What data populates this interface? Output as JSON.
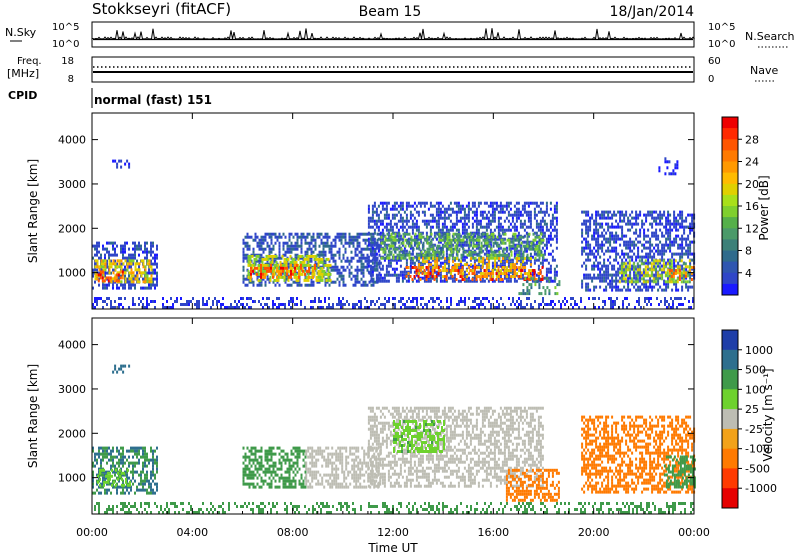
{
  "header": {
    "station": "Stokkseyri (fitACF)",
    "beam": "Beam 15",
    "date": "18/Jan/2014"
  },
  "strips": {
    "nsky_label": "N.Sky",
    "nsky_ticks": [
      "10^5",
      "10^0"
    ],
    "nsearch_label": "N.Search",
    "nsearch_ticks": [
      "10^5",
      "10^0"
    ],
    "freq_label_1": "Freq.",
    "freq_label_2": "[MHz]",
    "freq_ticks": [
      "18",
      "8"
    ],
    "nave_label": "Nave",
    "nave_ticks": [
      "60",
      "0"
    ],
    "cpid_label": "CPID",
    "cpid_value": "normal (fast) 151"
  },
  "chart_data": [
    {
      "type": "heatmap",
      "name": "power",
      "xlabel": "",
      "ylabel": "Slant Range [km]",
      "x_ticks": [
        "00:00",
        "04:00",
        "08:00",
        "12:00",
        "16:00",
        "20:00",
        "00:00"
      ],
      "xlim_hours": [
        0,
        24
      ],
      "y_ticks": [
        "1000",
        "2000",
        "3000",
        "4000"
      ],
      "ylim_km": [
        180,
        4600
      ],
      "colorbar": {
        "label": "Power [dB]",
        "ticks": [
          "28",
          "24",
          "20",
          "16",
          "12",
          "8",
          "4"
        ],
        "range": [
          0,
          30
        ]
      },
      "regions": [
        {
          "t": [
            0.0,
            2.6
          ],
          "r": [
            650,
            1700
          ],
          "level": 6
        },
        {
          "t": [
            0.1,
            2.4
          ],
          "r": [
            800,
            1300
          ],
          "level": 20
        },
        {
          "t": [
            0.15,
            1.2
          ],
          "r": [
            800,
            1050
          ],
          "level": 26
        },
        {
          "t": [
            6.0,
            11.5
          ],
          "r": [
            700,
            1900
          ],
          "level": 7
        },
        {
          "t": [
            6.2,
            9.5
          ],
          "r": [
            850,
            1400
          ],
          "level": 18
        },
        {
          "t": [
            6.3,
            9.0
          ],
          "r": [
            900,
            1200
          ],
          "level": 26
        },
        {
          "t": [
            11.0,
            18.5
          ],
          "r": [
            800,
            2600
          ],
          "level": 6
        },
        {
          "t": [
            11.5,
            18.0
          ],
          "r": [
            1300,
            1900
          ],
          "level": 14
        },
        {
          "t": [
            12.5,
            18.0
          ],
          "r": [
            850,
            1150
          ],
          "level": 27
        },
        {
          "t": [
            13.0,
            17.5
          ],
          "r": [
            900,
            1350
          ],
          "level": 21
        },
        {
          "t": [
            17.0,
            18.6
          ],
          "r": [
            500,
            900
          ],
          "level": 13
        },
        {
          "t": [
            19.5,
            24.0
          ],
          "r": [
            600,
            2400
          ],
          "level": 6
        },
        {
          "t": [
            21.0,
            23.8
          ],
          "r": [
            800,
            1300
          ],
          "level": 17
        },
        {
          "t": [
            23.0,
            24.0
          ],
          "r": [
            850,
            1150
          ],
          "level": 25
        },
        {
          "t": [
            0.0,
            24.0
          ],
          "r": [
            200,
            450
          ],
          "level": 5
        },
        {
          "t": [
            0.8,
            1.5
          ],
          "r": [
            3350,
            3550
          ],
          "level": 4
        },
        {
          "t": [
            22.5,
            23.3
          ],
          "r": [
            3200,
            3600
          ],
          "level": 4
        }
      ]
    },
    {
      "type": "heatmap",
      "name": "velocity",
      "xlabel": "Time UT",
      "ylabel": "Slant Range [km]",
      "x_ticks": [
        "00:00",
        "04:00",
        "08:00",
        "12:00",
        "16:00",
        "20:00",
        "00:00"
      ],
      "xlim_hours": [
        0,
        24
      ],
      "y_ticks": [
        "1000",
        "2000",
        "3000",
        "4000"
      ],
      "ylim_km": [
        180,
        4600
      ],
      "colorbar": {
        "label": "Velocity [m s⁻¹]",
        "ticks": [
          "1000",
          "500",
          "100",
          "25",
          "-25",
          "-100",
          "-500",
          "-1000"
        ],
        "levels": [
          1200,
          800,
          300,
          60,
          0,
          -60,
          -300,
          -800,
          -1200
        ]
      },
      "regions": [
        {
          "t": [
            0.0,
            2.6
          ],
          "r": [
            650,
            1700
          ],
          "v": 300
        },
        {
          "t": [
            0.2,
            1.5
          ],
          "r": [
            850,
            1200
          ],
          "v": 60
        },
        {
          "t": [
            6.0,
            8.5
          ],
          "r": [
            800,
            1700
          ],
          "v": 150
        },
        {
          "t": [
            8.5,
            11.5
          ],
          "r": [
            800,
            1700
          ],
          "v": 0
        },
        {
          "t": [
            11.0,
            18.0
          ],
          "r": [
            800,
            2600
          ],
          "v": 0
        },
        {
          "t": [
            12.0,
            14.0
          ],
          "r": [
            1600,
            2300
          ],
          "v": 80
        },
        {
          "t": [
            16.5,
            18.6
          ],
          "r": [
            500,
            1200
          ],
          "v": -150
        },
        {
          "t": [
            19.5,
            24.0
          ],
          "r": [
            650,
            2400
          ],
          "v": -250
        },
        {
          "t": [
            22.8,
            24.0
          ],
          "r": [
            800,
            1500
          ],
          "v": 200
        },
        {
          "t": [
            0.0,
            24.0
          ],
          "r": [
            200,
            450
          ],
          "v": 150
        },
        {
          "t": [
            0.8,
            1.5
          ],
          "r": [
            3350,
            3550
          ],
          "v": 600
        }
      ]
    }
  ]
}
